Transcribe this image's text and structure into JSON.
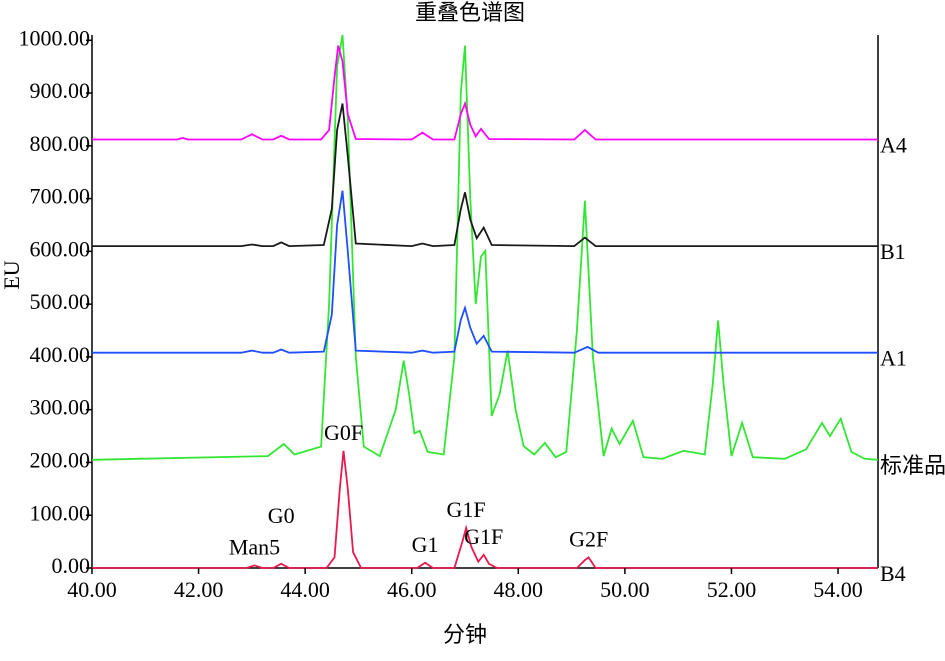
{
  "chart_data": {
    "type": "line",
    "title": "重叠色谱图",
    "x_label": "分钟",
    "y_label": "EU",
    "xlim": [
      40,
      54.75
    ],
    "ylim": [
      0,
      1010
    ],
    "xticks": [
      {
        "value": 40,
        "label": "40.00"
      },
      {
        "value": 42,
        "label": "42.00"
      },
      {
        "value": 44,
        "label": "44.00"
      },
      {
        "value": 46,
        "label": "46.00"
      },
      {
        "value": 48,
        "label": "48.00"
      },
      {
        "value": 50,
        "label": "50.00"
      },
      {
        "value": 52,
        "label": "52.00"
      },
      {
        "value": 54,
        "label": "54.00"
      }
    ],
    "yticks": [
      {
        "value": 0,
        "label": "0.00"
      },
      {
        "value": 100,
        "label": "100.00"
      },
      {
        "value": 200,
        "label": "200.00"
      },
      {
        "value": 300,
        "label": "300.00"
      },
      {
        "value": 400,
        "label": "400.00"
      },
      {
        "value": 500,
        "label": "500.00"
      },
      {
        "value": 600,
        "label": "600.00"
      },
      {
        "value": 700,
        "label": "700.00"
      },
      {
        "value": 800,
        "label": "800.00"
      },
      {
        "value": 900,
        "label": "900.00"
      },
      {
        "value": 1000,
        "label": "1000.00"
      }
    ],
    "series": [
      {
        "name": "标准品",
        "color": "#33e633",
        "x": [
          40,
          43.3,
          43.6,
          43.8,
          44.3,
          44.45,
          44.6,
          44.7,
          44.8,
          44.95,
          45.1,
          45.4,
          45.7,
          45.85,
          45.95,
          46.05,
          46.15,
          46.3,
          46.6,
          46.8,
          46.92,
          47.0,
          47.1,
          47.2,
          47.3,
          47.38,
          47.5,
          47.65,
          47.8,
          47.95,
          48.1,
          48.3,
          48.5,
          48.7,
          48.9,
          49.1,
          49.25,
          49.4,
          49.6,
          49.75,
          49.9,
          50.15,
          50.35,
          50.7,
          51.1,
          51.5,
          51.65,
          51.75,
          51.85,
          52.0,
          52.2,
          52.4,
          53.0,
          53.4,
          53.7,
          53.85,
          54.05,
          54.25,
          54.5,
          54.75
        ],
        "values": [
          205,
          212,
          235,
          215,
          230,
          500,
          950,
          1010,
          850,
          400,
          230,
          212,
          300,
          393,
          330,
          255,
          260,
          220,
          215,
          400,
          900,
          990,
          700,
          500,
          590,
          601,
          288,
          330,
          412,
          300,
          231,
          215,
          237,
          210,
          220,
          450,
          696,
          400,
          212,
          264,
          235,
          279,
          210,
          207,
          222,
          215,
          350,
          469,
          350,
          212,
          275,
          210,
          207,
          225,
          275,
          250,
          283,
          220,
          207,
          205
        ]
      },
      {
        "name": "A4",
        "color": "#ff00ff",
        "x": [
          40,
          41.6,
          41.7,
          41.8,
          42.8,
          43.0,
          43.2,
          43.4,
          43.55,
          43.7,
          44.3,
          44.45,
          44.55,
          44.62,
          44.7,
          44.8,
          44.95,
          46.0,
          46.2,
          46.4,
          46.8,
          46.92,
          47.0,
          47.1,
          47.2,
          47.3,
          47.45,
          49.05,
          49.25,
          49.45,
          54.75
        ],
        "values": [
          812,
          812,
          815,
          812,
          812,
          822,
          812,
          812,
          819,
          812,
          812,
          830,
          930,
          990,
          960,
          860,
          813,
          812,
          825,
          812,
          812,
          860,
          880,
          840,
          818,
          832,
          813,
          812,
          830,
          812,
          812
        ]
      },
      {
        "name": "B1",
        "color": "#1a1a1a",
        "x": [
          40,
          42.8,
          43.0,
          43.2,
          43.4,
          43.55,
          43.7,
          44.35,
          44.5,
          44.6,
          44.7,
          44.8,
          44.95,
          46.0,
          46.2,
          46.4,
          46.8,
          46.92,
          47.0,
          47.1,
          47.22,
          47.35,
          47.5,
          49.05,
          49.25,
          49.45,
          54.75
        ],
        "values": [
          610,
          610,
          613,
          610,
          610,
          617,
          610,
          612,
          680,
          830,
          880,
          780,
          615,
          610,
          615,
          610,
          612,
          680,
          712,
          660,
          625,
          645,
          612,
          610,
          626,
          610,
          610
        ]
      },
      {
        "name": "A1",
        "color": "#1f4fff",
        "x": [
          40,
          42.8,
          43.0,
          43.2,
          43.4,
          43.55,
          43.7,
          44.35,
          44.5,
          44.6,
          44.7,
          44.8,
          44.95,
          46.0,
          46.2,
          46.4,
          46.8,
          46.92,
          47.0,
          47.1,
          47.22,
          47.35,
          47.5,
          49.05,
          49.3,
          49.5,
          54.75
        ],
        "values": [
          408,
          408,
          412,
          408,
          408,
          414,
          408,
          410,
          480,
          650,
          715,
          600,
          412,
          408,
          412,
          408,
          410,
          470,
          493,
          455,
          425,
          440,
          410,
          408,
          419,
          408,
          408
        ]
      },
      {
        "name": "B4",
        "color": "#e8194d",
        "x": [
          40,
          42.9,
          43.05,
          43.2,
          43.4,
          43.55,
          43.7,
          44.4,
          44.55,
          44.65,
          44.72,
          44.8,
          44.9,
          45.05,
          46.1,
          46.25,
          46.4,
          46.8,
          46.95,
          47.02,
          47.12,
          47.25,
          47.35,
          47.45,
          47.6,
          49.1,
          49.25,
          49.32,
          49.45,
          54.75
        ],
        "values": [
          0,
          0,
          5,
          0,
          0,
          8,
          0,
          0,
          20,
          150,
          222,
          150,
          30,
          0,
          0,
          10,
          0,
          0,
          50,
          76,
          40,
          12,
          25,
          8,
          0,
          0,
          15,
          20,
          0,
          0
        ]
      }
    ],
    "annotations": [
      {
        "label": "Man5",
        "x": 43.05
      },
      {
        "label": "G0",
        "x": 43.55
      },
      {
        "label": "G0F",
        "x": 44.72
      },
      {
        "label": "G1",
        "x": 46.25
      },
      {
        "label": "G1F",
        "x": 47.02
      },
      {
        "label": "G1F",
        "x": 47.35
      },
      {
        "label": "G2F",
        "x": 49.32
      }
    ]
  }
}
